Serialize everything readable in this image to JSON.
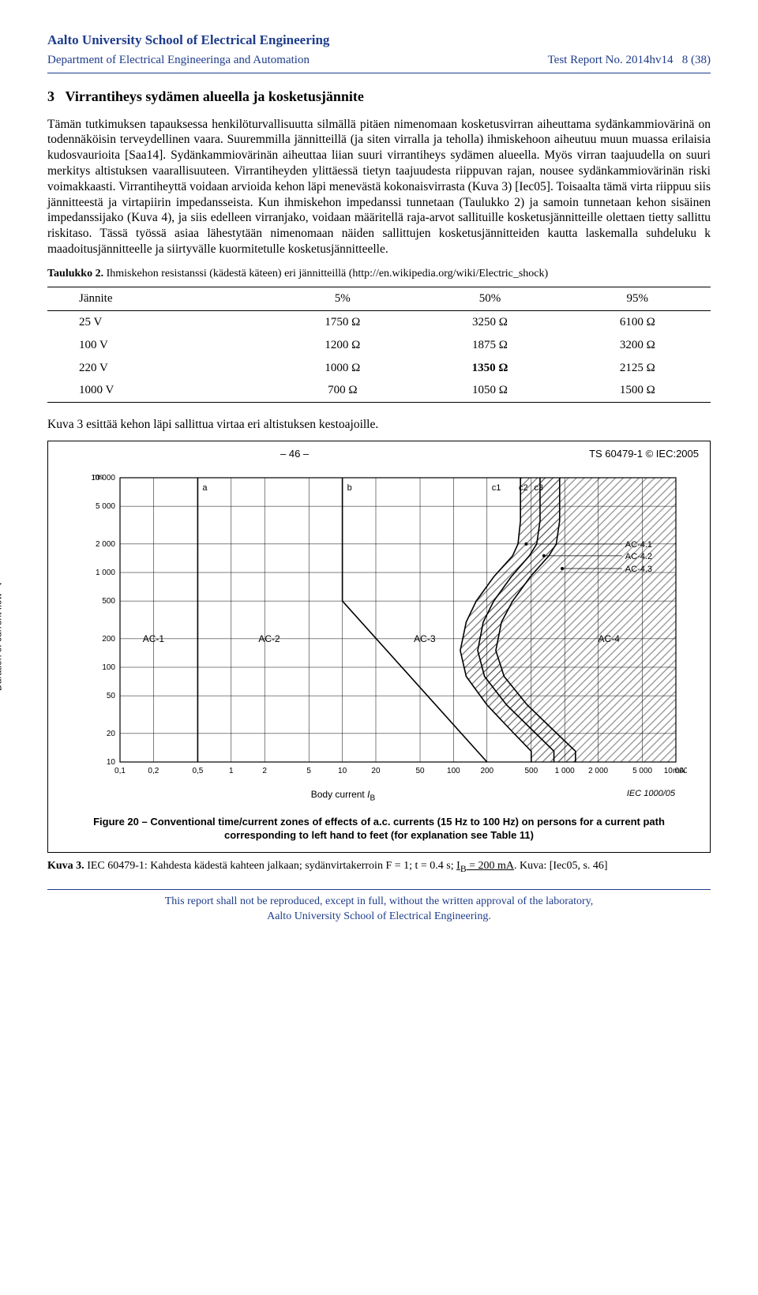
{
  "header": {
    "org": "Aalto University School of Electrical Engineering",
    "dept": "Department of Electrical Engineeringa and Automation",
    "report_label": "Test Report No. 2014hv14",
    "page": "8 (38)"
  },
  "section": {
    "num": "3",
    "title": "Virrantiheys sydämen alueella ja kosketusjännite"
  },
  "body_text": "Tämän tutkimuksen tapauksessa henkilöturvallisuutta silmällä pitäen nimenomaan kosketusvirran aiheuttama sydänkammiovärinä on todennäköisin terveydellinen vaara. Suuremmilla jännitteillä (ja siten virralla ja teholla) ihmiskehoon aiheutuu muun muassa erilaisia kudosvaurioita [Saa14]. Sydänkammiovärinän aiheuttaa liian suuri virrantiheys sydämen alueella. Myös virran taajuudella on suuri merkitys altistuksen vaarallisuuteen. Virrantiheyden ylittäessä tietyn taajuudesta riippuvan rajan, nousee sydänkammiovärinän riski voimakkaasti. Virrantiheyttä voidaan arvioida kehon läpi menevästä kokonaisvirrasta (Kuva 3) [Iec05]. Toisaalta tämä virta riippuu siis jännitteestä ja virtapiirin impedansseista. Kun ihmiskehon impedanssi tunnetaan (Taulukko 2) ja samoin tunnetaan kehon sisäinen impedanssijako (Kuva 4), ja siis edelleen virranjako, voidaan määritellä raja-arvot sallituille kosketusjännitteille olettaen tietty sallittu riskitaso. Tässä työssä asiaa lähestytään nimenomaan näiden sallittujen kosketusjännitteiden kautta laskemalla suhdeluku k maadoitusjännitteelle ja siirtyvälle kuormitetulle kosketusjännitteelle.",
  "table2": {
    "caption_bold": "Taulukko 2.",
    "caption_rest": " Ihmiskehon resistanssi (kädestä käteen) eri jännitteillä (http://en.wikipedia.org/wiki/Electric_shock)",
    "columns": [
      "Jännite",
      "5%",
      "50%",
      "95%"
    ],
    "rows": [
      [
        "25 V",
        "1750 Ω",
        "3250 Ω",
        "6100 Ω"
      ],
      [
        "100 V",
        "1200 Ω",
        "1875 Ω",
        "3200 Ω"
      ],
      [
        "220 V",
        "1000 Ω",
        "1350 Ω",
        "2125 Ω"
      ],
      [
        "1000 V",
        "700 Ω",
        "1050 Ω",
        "1500 Ω"
      ]
    ],
    "bold_cell": [
      2,
      2
    ]
  },
  "mid_text": "Kuva 3 esittää kehon läpi sallittua virtaa eri altistuksen kestoajoille.",
  "figure": {
    "top_left": "– 46 –",
    "top_right": "TS 60479-1 © IEC:2005",
    "ylabel": "Duration of current flow   t",
    "y_unit": "ms",
    "yticks": [
      10,
      20,
      50,
      100,
      200,
      500,
      1000,
      2000,
      5000,
      10000
    ],
    "ytick_labels": [
      "10",
      "20",
      "50",
      "100",
      "200",
      "500",
      "1 000",
      "2 000",
      "5 000",
      "10 000"
    ],
    "xlabel": "Body current IB",
    "x_unit": "mA",
    "xticks": [
      0.1,
      0.2,
      0.5,
      1,
      2,
      5,
      10,
      20,
      50,
      100,
      200,
      500,
      1000,
      2000,
      5000,
      10000
    ],
    "xtick_labels": [
      "0,1",
      "0,2",
      "0,5",
      "1",
      "2",
      "5",
      "10",
      "20",
      "50",
      "100",
      "200",
      "500",
      "1 000",
      "2 000",
      "5 000",
      "10 000"
    ],
    "iec_tag": "IEC   1000/05",
    "zones": [
      "AC-1",
      "AC-2",
      "AC-3",
      "AC-4"
    ],
    "zone_x": [
      0.2,
      2.2,
      55,
      2500
    ],
    "curve_labels": [
      "a",
      "b",
      "c1",
      "c2",
      "c3"
    ],
    "curve_x": [
      0.5,
      10,
      200,
      350,
      480
    ],
    "callouts": [
      "AC-4.1",
      "AC-4.2",
      "AC-4.3"
    ],
    "grid_color": "#000000",
    "bg_color": "#ffffff",
    "line_a_x": 0.5,
    "line_b": [
      [
        10,
        10000
      ],
      [
        10,
        500
      ],
      [
        200,
        10
      ]
    ],
    "line_c1": [
      [
        400,
        10000
      ],
      [
        400,
        3500
      ],
      [
        380,
        2000
      ],
      [
        340,
        1500
      ],
      [
        230,
        900
      ],
      [
        160,
        500
      ],
      [
        130,
        300
      ],
      [
        115,
        150
      ],
      [
        130,
        80
      ],
      [
        200,
        40
      ],
      [
        350,
        20
      ],
      [
        500,
        13
      ],
      [
        500,
        10
      ]
    ],
    "line_c2": [
      [
        600,
        10000
      ],
      [
        600,
        3500
      ],
      [
        560,
        2000
      ],
      [
        480,
        1500
      ],
      [
        330,
        900
      ],
      [
        230,
        500
      ],
      [
        185,
        300
      ],
      [
        165,
        150
      ],
      [
        190,
        80
      ],
      [
        300,
        40
      ],
      [
        550,
        20
      ],
      [
        800,
        13
      ],
      [
        800,
        10
      ]
    ],
    "line_c3": [
      [
        900,
        10000
      ],
      [
        900,
        3500
      ],
      [
        840,
        2000
      ],
      [
        720,
        1500
      ],
      [
        490,
        900
      ],
      [
        340,
        500
      ],
      [
        270,
        300
      ],
      [
        240,
        150
      ],
      [
        285,
        80
      ],
      [
        460,
        40
      ],
      [
        850,
        20
      ],
      [
        1250,
        13
      ],
      [
        1250,
        10
      ]
    ],
    "fig_caption": "Figure 20 – Conventional time/current zones of effects of a.c. currents (15 Hz to 100 Hz) on persons for a current path corresponding to left hand to feet (for explanation see Table 11)"
  },
  "kuva3_caption_bold": "Kuva 3.",
  "kuva3_caption_rest": " IEC 60479-1: Kahdesta kädestä kahteen jalkaan; sydänvirtakerroin F = 1; t = 0.4 s; ",
  "kuva3_underline": "IB = 200 mA",
  "kuva3_tail": ". Kuva: [Iec05, s. 46]",
  "footer": {
    "l1": "This report shall not be reproduced, except in full, without the written approval of the laboratory,",
    "l2": "Aalto University School of Electrical Engineering."
  }
}
